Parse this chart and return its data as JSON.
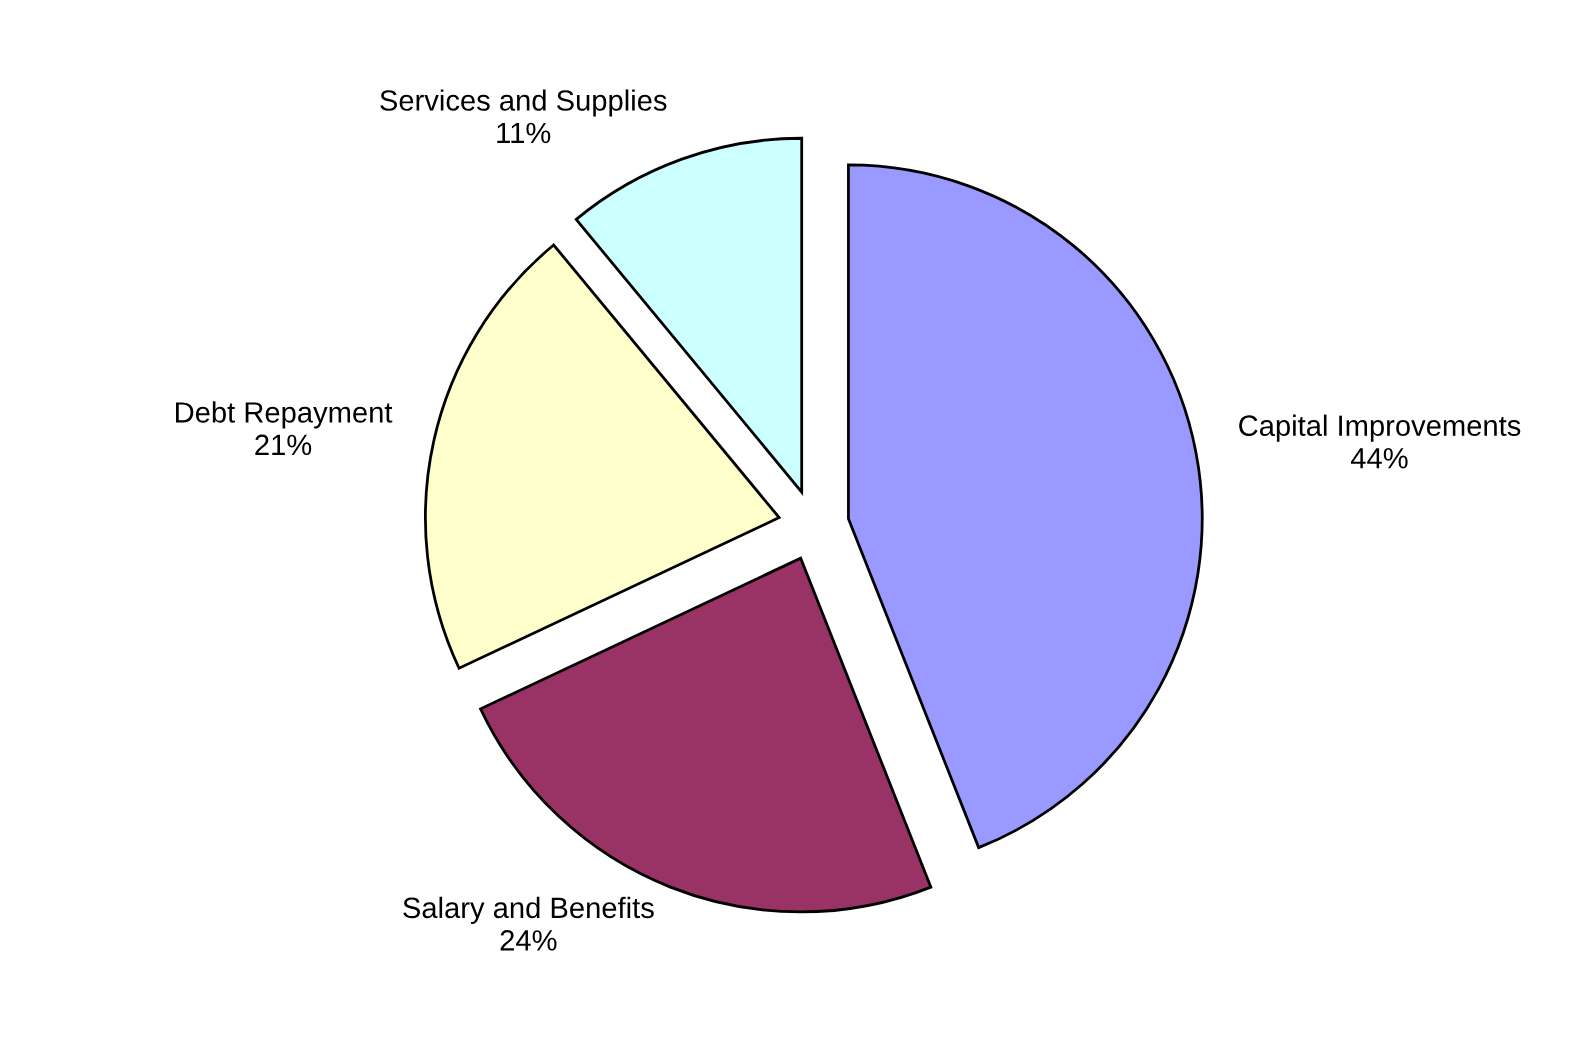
{
  "chart_data": {
    "type": "pie",
    "categories": [
      "Capital Improvements",
      "Salary and Benefits",
      "Debt Repayment",
      "Services and Supplies"
    ],
    "values": [
      44,
      24,
      21,
      11
    ],
    "value_labels": [
      "44%",
      "24%",
      "21%",
      "11%"
    ],
    "colors": [
      "#9999ff",
      "#993366",
      "#ffffcc",
      "#ccffff"
    ]
  }
}
